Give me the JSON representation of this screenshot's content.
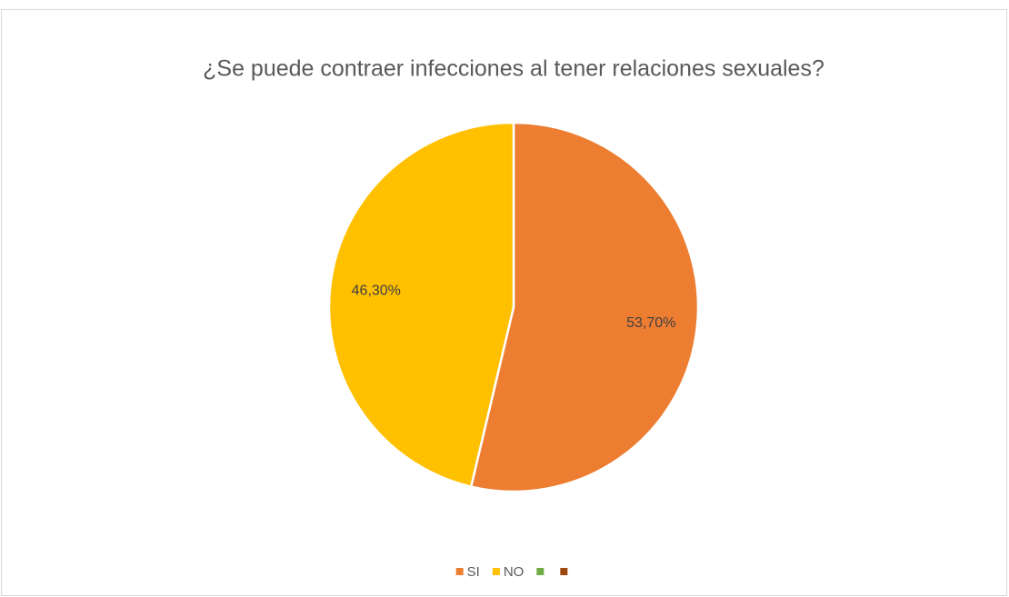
{
  "chart_data": {
    "type": "pie",
    "title": "¿Se puede contraer infecciones al tener relaciones sexuales?",
    "categories": [
      "SI",
      "NO",
      null,
      null
    ],
    "values": [
      53.7,
      46.3,
      0,
      0
    ],
    "value_labels": [
      "53,70%",
      "46,30%",
      null,
      null
    ],
    "colors": [
      "#ed7d31",
      "#ffc000",
      "#70ad47",
      "#9e480e"
    ],
    "legend": "bottom"
  }
}
